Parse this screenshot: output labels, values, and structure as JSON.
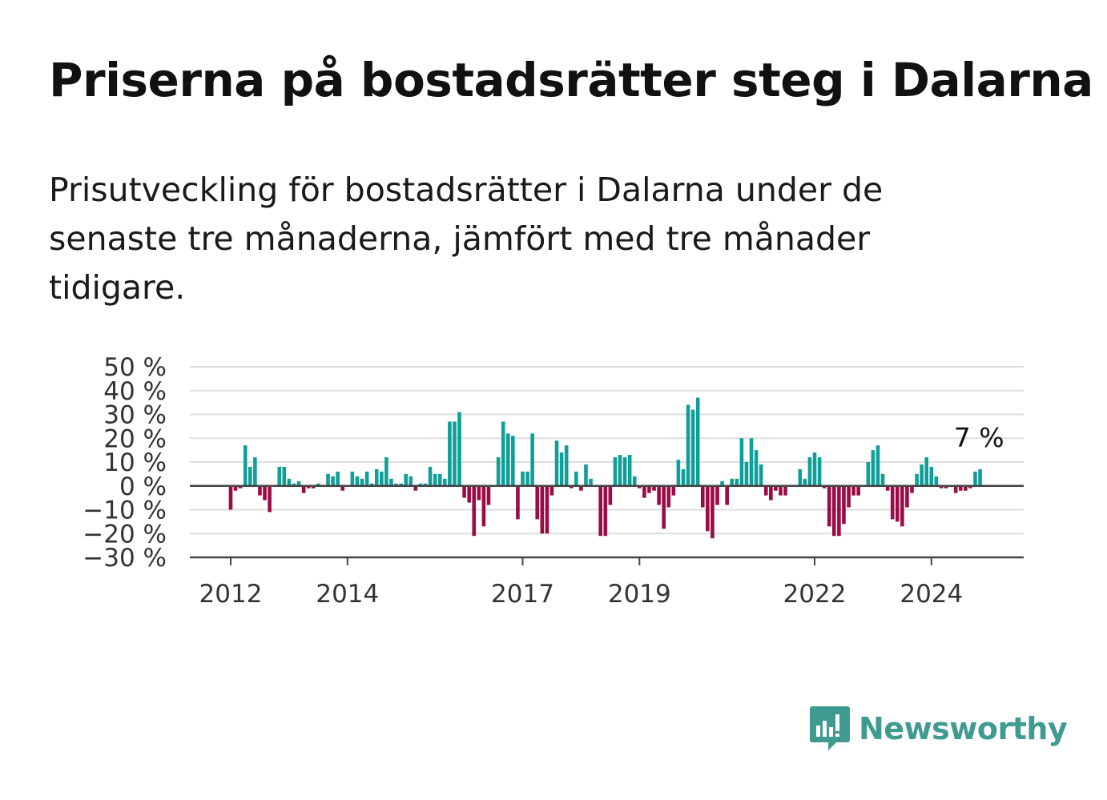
{
  "title": "Priserna på bostadsrätter steg i Dalarna",
  "subtitle": "Prisutveckling för bostadsrätter i Dalarna under de senaste tre månaderna, jämfört med tre månader tidigare.",
  "brand": {
    "name": "Newsworthy",
    "color": "#3f9a90",
    "icon": "newsworthy-bar-chart-icon"
  },
  "colors": {
    "positive": "#0f9f98",
    "negative": "#9b0b45",
    "grid": "#dddddd",
    "axis": "#444444"
  },
  "chart_data": {
    "type": "bar",
    "start": "2012-01",
    "frequency": "monthly",
    "ylim": [
      -30,
      50
    ],
    "yticks": [
      50,
      40,
      30,
      20,
      10,
      0,
      -10,
      -20,
      -30
    ],
    "ytick_labels": [
      "50 %",
      "40 %",
      "30 %",
      "20 %",
      "10 %",
      "0 %",
      "−10 %",
      "−20 %",
      "−30 %"
    ],
    "xticks": [
      "2012",
      "2014",
      "2017",
      "2019",
      "2022",
      "2024"
    ],
    "grid": true,
    "legend": "none",
    "end_label": "7 %",
    "values": [
      -10,
      -2,
      -1,
      17,
      8,
      12,
      -4,
      -6,
      -11,
      0,
      8,
      8,
      3,
      1,
      2,
      -3,
      -1,
      -1,
      1,
      0,
      5,
      4,
      6,
      -2,
      0,
      6,
      4,
      3,
      6,
      1,
      7,
      6,
      12,
      3,
      1,
      1,
      5,
      4,
      -2,
      1,
      1,
      8,
      5,
      5,
      3,
      27,
      27,
      31,
      -5,
      -7,
      -21,
      -6,
      -17,
      -8,
      0,
      12,
      27,
      22,
      21,
      -14,
      6,
      6,
      22,
      -14,
      -20,
      -20,
      -4,
      19,
      14,
      17,
      -1,
      6,
      -2,
      9,
      3,
      0,
      -21,
      -21,
      -8,
      12,
      13,
      12,
      13,
      4,
      -1,
      -5,
      -3,
      -2,
      -8,
      -18,
      -9,
      -4,
      11,
      7,
      34,
      32,
      37,
      -9,
      -19,
      -22,
      -8,
      2,
      -8,
      3,
      3,
      20,
      10,
      20,
      15,
      9,
      -4,
      -6,
      -2,
      -4,
      -4,
      0,
      0,
      7,
      3,
      12,
      14,
      12,
      -1,
      -17,
      -21,
      -21,
      -16,
      -9,
      -4,
      -4,
      0,
      10,
      15,
      17,
      5,
      -2,
      -14,
      -15,
      -17,
      -9,
      -3,
      5,
      9,
      12,
      8,
      4,
      -1,
      -1,
      0,
      -3,
      -2,
      -2,
      -1,
      6,
      7
    ]
  }
}
